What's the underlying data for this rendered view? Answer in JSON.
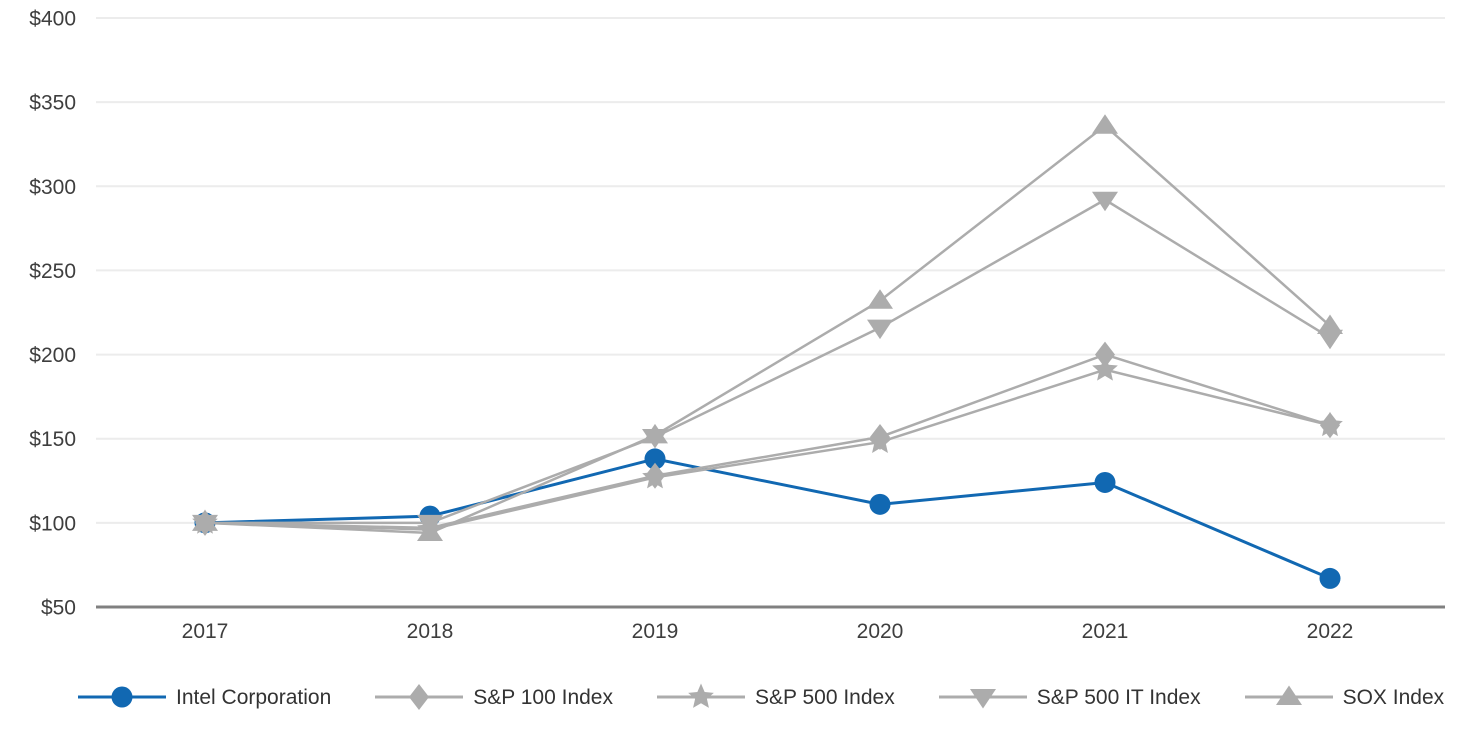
{
  "chart_data": {
    "type": "line",
    "title": "",
    "x_categories": [
      "2017",
      "2018",
      "2019",
      "2020",
      "2021",
      "2022"
    ],
    "y_axis": {
      "min": 50,
      "max": 400,
      "step": 50,
      "ticks": [
        {
          "value": 400,
          "label": "$400"
        },
        {
          "value": 350,
          "label": "$350"
        },
        {
          "value": 300,
          "label": "$300"
        },
        {
          "value": 250,
          "label": "$250"
        },
        {
          "value": 200,
          "label": "$200"
        },
        {
          "value": 150,
          "label": "$150"
        },
        {
          "value": 100,
          "label": "$100"
        },
        {
          "value": 50,
          "label": "$50"
        }
      ]
    },
    "grid": true,
    "legend_position": "bottom",
    "series": [
      {
        "name": "Intel Corporation",
        "marker": "circle",
        "color": "#1168B2",
        "values": [
          100,
          104,
          138,
          111,
          124,
          67
        ]
      },
      {
        "name": "S&P 100 Index",
        "marker": "diamond",
        "color": "#ACACAC",
        "values": [
          100,
          97,
          128,
          151,
          200,
          158
        ]
      },
      {
        "name": "S&P 500 Index",
        "marker": "star",
        "color": "#ACACAC",
        "values": [
          100,
          96,
          127,
          148,
          191,
          158
        ]
      },
      {
        "name": "S&P 500 IT Index",
        "marker": "triangle-down",
        "color": "#ACACAC",
        "values": [
          100,
          100,
          151,
          216,
          292,
          210
        ]
      },
      {
        "name": "SOX Index",
        "marker": "triangle-up",
        "color": "#ACACAC",
        "values": [
          100,
          94,
          152,
          232,
          336,
          217
        ]
      }
    ],
    "colors": {
      "gridline": "#ECECEC",
      "axis_line": "#808080",
      "tick_text": "#3E3E3E"
    }
  }
}
